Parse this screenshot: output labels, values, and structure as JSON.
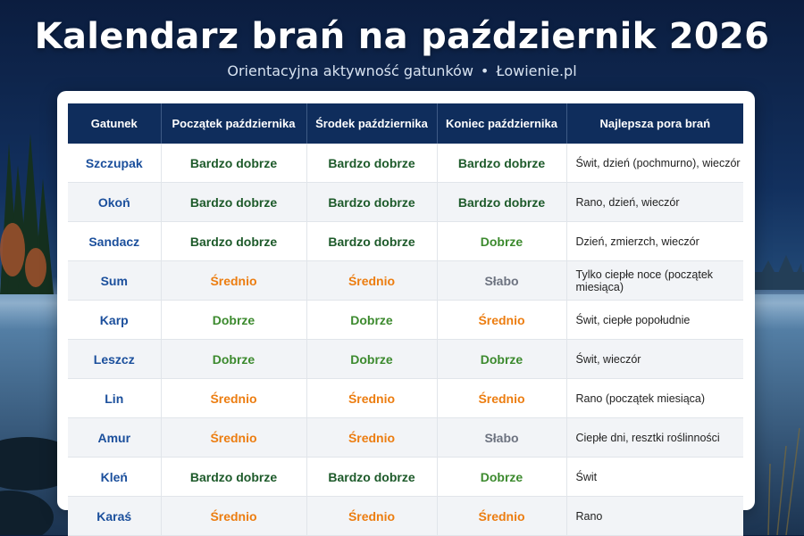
{
  "header": {
    "title": "Kalendarz brań na październik 2026",
    "subtitle": "Orientacyjna aktywność gatunków",
    "separator": "•",
    "brand": "Łowienie.pl"
  },
  "colors": {
    "header_bg": "#0f2d5c",
    "species_text": "#1b4f9c",
    "bardzo_dobrze": "#1d5a2a",
    "dobrze": "#3c8a2e",
    "srednio": "#ec7d10",
    "slabo": "#6d7380"
  },
  "table": {
    "columns": [
      "Gatunek",
      "Początek października",
      "Środek października",
      "Koniec października",
      "Najlepsza pora brań"
    ],
    "rows": [
      {
        "species": "Szczupak",
        "start": "Bardzo dobrze",
        "mid": "Bardzo dobrze",
        "end": "Bardzo dobrze",
        "best": "Świt, dzień (pochmurno), wieczór"
      },
      {
        "species": "Okoń",
        "start": "Bardzo dobrze",
        "mid": "Bardzo dobrze",
        "end": "Bardzo dobrze",
        "best": "Rano, dzień, wieczór"
      },
      {
        "species": "Sandacz",
        "start": "Bardzo dobrze",
        "mid": "Bardzo dobrze",
        "end": "Dobrze",
        "best": "Dzień, zmierzch, wieczór"
      },
      {
        "species": "Sum",
        "start": "Średnio",
        "mid": "Średnio",
        "end": "Słabo",
        "best": "Tylko ciepłe noce (początek miesiąca)"
      },
      {
        "species": "Karp",
        "start": "Dobrze",
        "mid": "Dobrze",
        "end": "Średnio",
        "best": "Świt, ciepłe popołudnie"
      },
      {
        "species": "Leszcz",
        "start": "Dobrze",
        "mid": "Dobrze",
        "end": "Dobrze",
        "best": "Świt, wieczór"
      },
      {
        "species": "Lin",
        "start": "Średnio",
        "mid": "Średnio",
        "end": "Średnio",
        "best": "Rano (początek miesiąca)"
      },
      {
        "species": "Amur",
        "start": "Średnio",
        "mid": "Średnio",
        "end": "Słabo",
        "best": "Ciepłe dni, resztki roślinności"
      },
      {
        "species": "Kleń",
        "start": "Bardzo dobrze",
        "mid": "Bardzo dobrze",
        "end": "Dobrze",
        "best": "Świt"
      },
      {
        "species": "Karaś",
        "start": "Średnio",
        "mid": "Średnio",
        "end": "Średnio",
        "best": "Rano"
      }
    ]
  }
}
